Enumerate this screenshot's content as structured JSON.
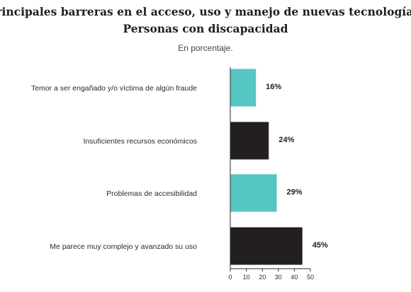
{
  "chart_data": {
    "type": "bar",
    "orientation": "horizontal",
    "title": "Principales barreras en el acceso, uso y manejo de nuevas tecnologías.",
    "title_line2": "Personas con discapacidad",
    "subtitle": "En porcentaje.",
    "categories": [
      "Temor a ser engañado y/o víctima de algún fraude",
      "Insuficientes recursos económicos",
      "Problemas de accesibilidad",
      "Me parece muy complejo y avanzado su uso"
    ],
    "values": [
      16,
      24,
      29,
      45
    ],
    "value_labels": [
      "16%",
      "24%",
      "29%",
      "45%"
    ],
    "bar_colors": [
      "#56c6c3",
      "#231f20",
      "#56c6c3",
      "#231f20"
    ],
    "xlim": [
      0,
      50
    ],
    "xticks": [
      0,
      10,
      20,
      30,
      40,
      50
    ],
    "xtick_labels": [
      "0",
      "10",
      "20",
      "30",
      "40",
      "50"
    ],
    "grid": false,
    "legend": false
  }
}
